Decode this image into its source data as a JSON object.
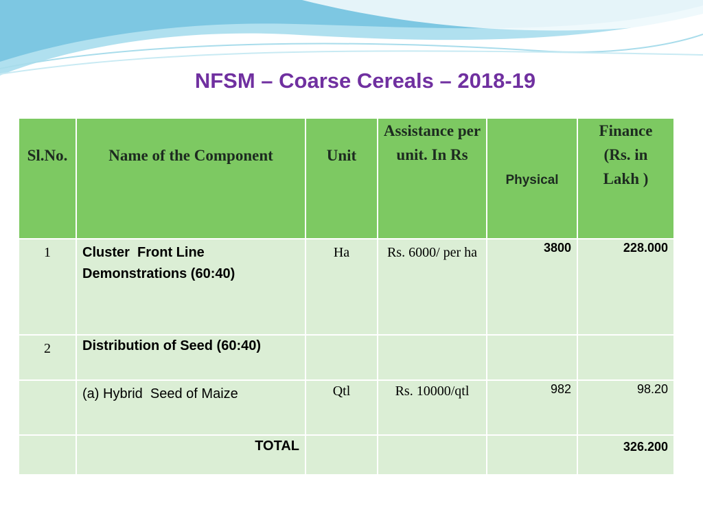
{
  "title": "NFSM – Coarse Cereals – 2018-19",
  "table": {
    "header": [
      "Sl.No.",
      "Name of the Component",
      "Unit",
      "Assistance per unit. In Rs",
      "Physical",
      "Finance (Rs. in Lakh )"
    ],
    "rows": [
      {
        "sl": "1",
        "component": "Cluster  Front Line Demonstrations (60:40)",
        "unit": "Ha",
        "assistance": "Rs. 6000/ per ha",
        "physical": "3800",
        "finance": "228.000"
      },
      {
        "sl": "2",
        "component": "Distribution of Seed (60:40)"
      },
      {
        "component": "(a) Hybrid  Seed of Maize",
        "unit": "Qtl",
        "assistance": "Rs. 10000/qtl",
        "physical": "982",
        "finance": "98.20"
      },
      {
        "component": "TOTAL",
        "finance": "326.200"
      }
    ]
  }
}
